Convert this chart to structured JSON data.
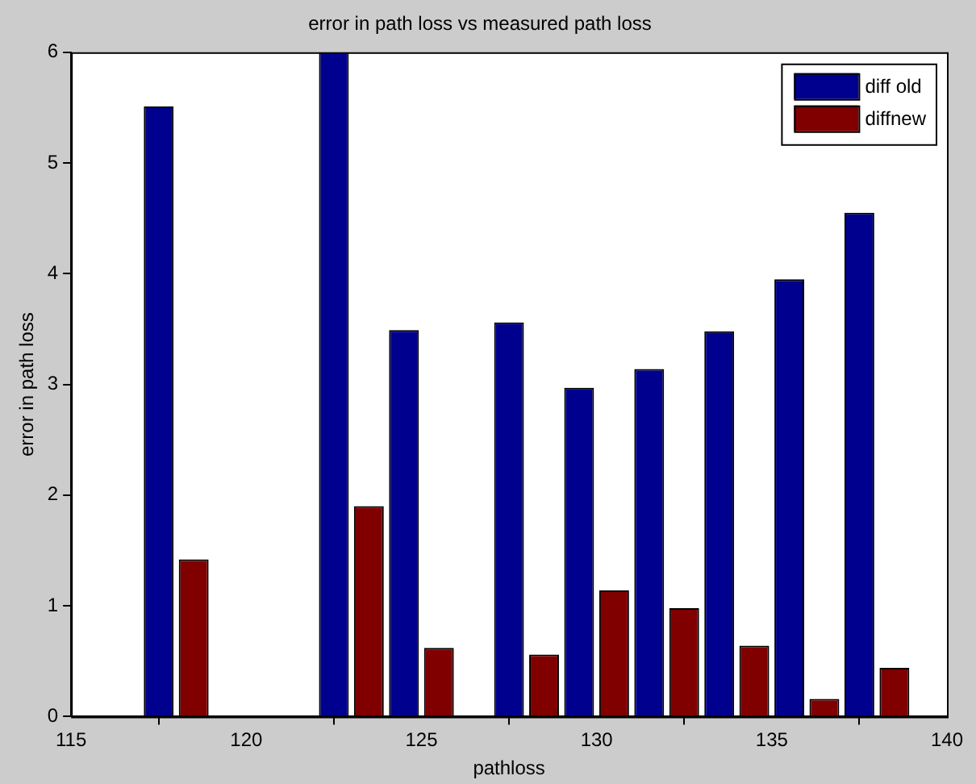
{
  "chart_data": {
    "type": "bar",
    "title": "error in path loss vs measured path loss",
    "xlabel": "pathloss",
    "ylabel": "error in path loss",
    "x": [
      118,
      123,
      125,
      128,
      130,
      132,
      134,
      136,
      138
    ],
    "series": [
      {
        "name": "diff old",
        "color": "#00008f",
        "values": [
          5.51,
          6.0,
          3.49,
          3.56,
          2.97,
          3.14,
          3.48,
          3.95,
          4.55
        ]
      },
      {
        "name": "diffnew",
        "color": "#800000",
        "values": [
          1.42,
          1.9,
          0.62,
          0.56,
          1.14,
          0.98,
          0.64,
          0.16,
          0.44
        ]
      }
    ],
    "xlim": [
      115,
      140
    ],
    "xticks": [
      115,
      120,
      125,
      130,
      135,
      140
    ],
    "ylim": [
      0,
      6
    ],
    "yticks": [
      0,
      1,
      2,
      3,
      4,
      5,
      6
    ],
    "legend": "top right",
    "grid": false
  }
}
